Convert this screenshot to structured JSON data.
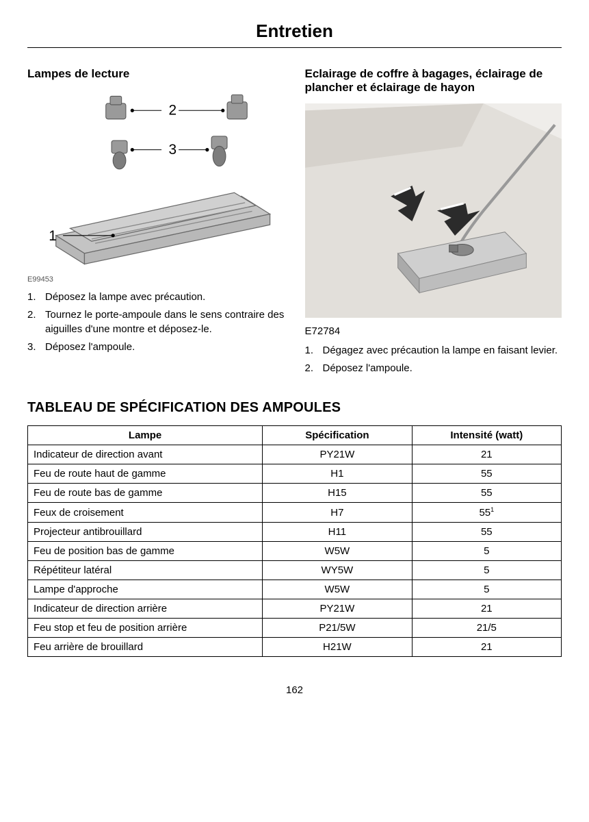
{
  "page": {
    "title": "Entretien",
    "number": "162"
  },
  "left": {
    "heading": "Lampes de lecture",
    "diagram_ref": "E99453",
    "callouts": {
      "c1": "1",
      "c2": "2",
      "c3": "3"
    },
    "steps": [
      "Déposez la lampe avec précaution.",
      "Tournez le porte-ampoule dans le sens contraire des aiguilles d'une montre et déposez-le.",
      "Déposez l'ampoule."
    ]
  },
  "right": {
    "heading": "Eclairage de coffre à bagages, éclairage de plancher et éclairage de hayon",
    "diagram_ref": "E72784",
    "steps": [
      "Dégagez avec précaution la lampe en faisant levier.",
      "Déposez l'ampoule."
    ]
  },
  "table": {
    "title": "TABLEAU DE SPÉCIFICATION DES AMPOULES",
    "columns": [
      "Lampe",
      "Spécification",
      "Intensité (watt)"
    ],
    "col_widths": [
      "44%",
      "28%",
      "28%"
    ],
    "rows": [
      {
        "lampe": "Indicateur de direction avant",
        "spec": "PY21W",
        "watt": "21",
        "sup": ""
      },
      {
        "lampe": "Feu de route haut de gamme",
        "spec": "H1",
        "watt": "55",
        "sup": ""
      },
      {
        "lampe": "Feu de route bas de gamme",
        "spec": "H15",
        "watt": "55",
        "sup": ""
      },
      {
        "lampe": "Feux de croisement",
        "spec": "H7",
        "watt": "55",
        "sup": "1"
      },
      {
        "lampe": "Projecteur antibrouillard",
        "spec": "H11",
        "watt": "55",
        "sup": ""
      },
      {
        "lampe": "Feu de position bas de gamme",
        "spec": "W5W",
        "watt": "5",
        "sup": ""
      },
      {
        "lampe": "Répétiteur latéral",
        "spec": "WY5W",
        "watt": "5",
        "sup": ""
      },
      {
        "lampe": "Lampe d'approche",
        "spec": "W5W",
        "watt": "5",
        "sup": ""
      },
      {
        "lampe": "Indicateur de direction arrière",
        "spec": "PY21W",
        "watt": "21",
        "sup": ""
      },
      {
        "lampe": "Feu stop et feu de position arrière",
        "spec": "P21/5W",
        "watt": "21/5",
        "sup": ""
      },
      {
        "lampe": "Feu arrière de brouillard",
        "spec": "H21W",
        "watt": "21",
        "sup": ""
      }
    ]
  },
  "colors": {
    "diagram_fill": "#b8b8b8",
    "diagram_stroke": "#6a6a6a",
    "diagram_dark": "#3b3b3b",
    "arrow_fill": "#2b2b2b",
    "bg_panel": "#e8e6e3"
  }
}
